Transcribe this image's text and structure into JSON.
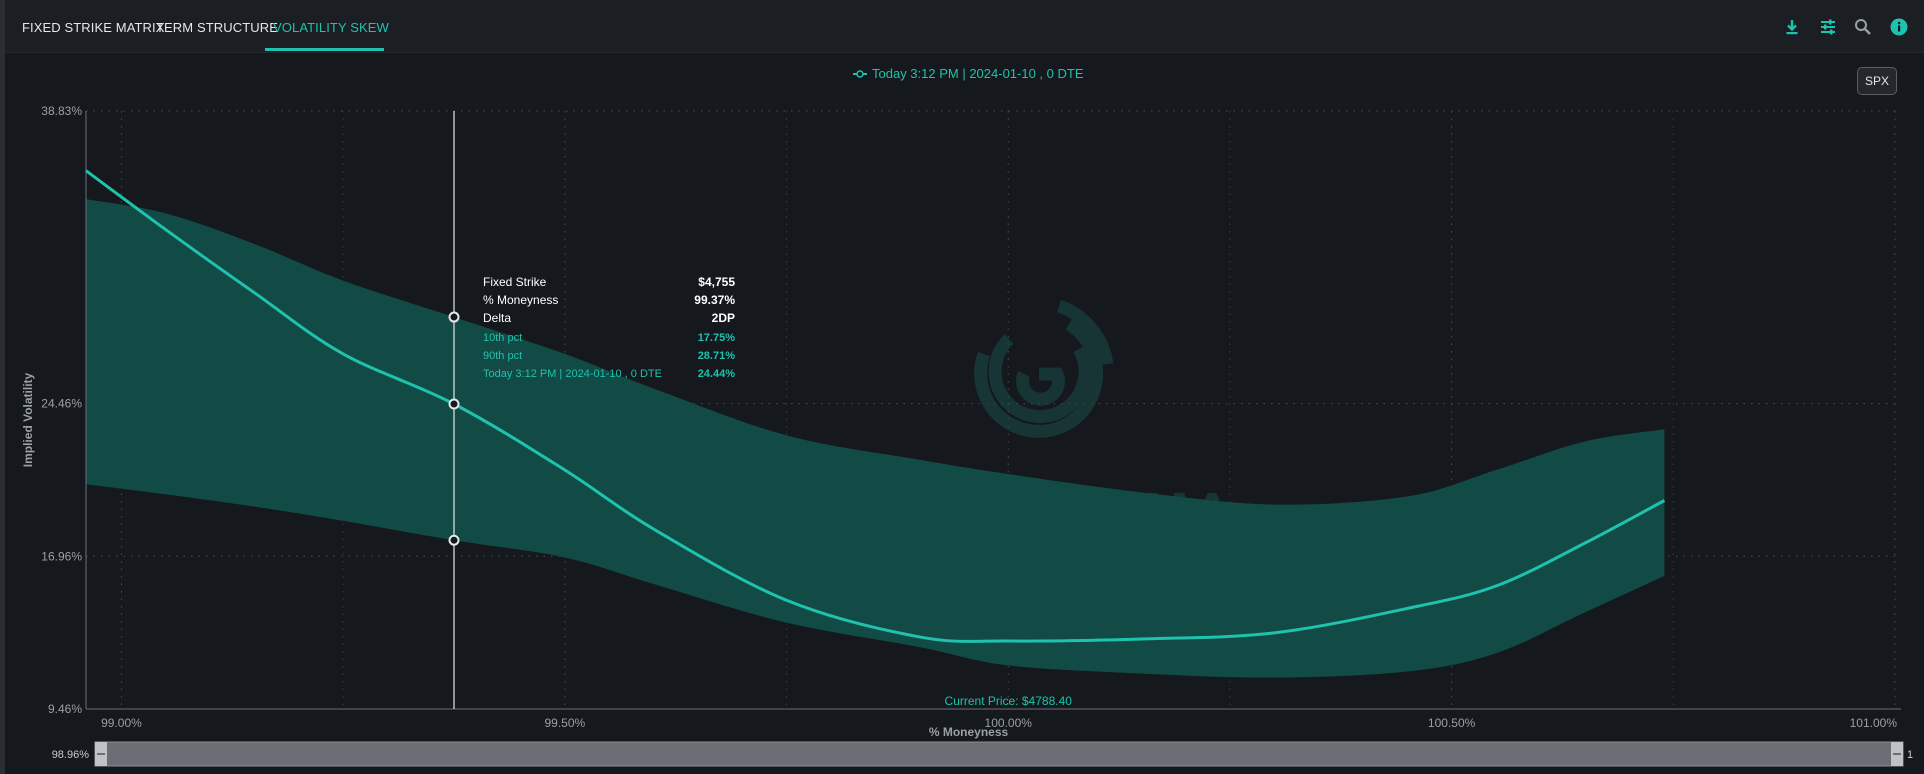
{
  "tabs": [
    {
      "label": "FIXED STRIKE MATRIX",
      "active": false
    },
    {
      "label": "TERM STRUCTURE",
      "active": false
    },
    {
      "label": "VOLATILITY SKEW",
      "active": true
    }
  ],
  "toolbar_icons": [
    "download-icon",
    "settings-sliders-icon",
    "search-icon",
    "info-icon"
  ],
  "symbol_button": "SPX",
  "watermark": "SPOTGAMMA",
  "colors": {
    "accent": "#1fc2ad",
    "band": "#124a45",
    "background": "#15181c"
  },
  "chart_data": {
    "type": "area",
    "legend": [
      "Today 3:12 PM | 2024-01-10 , 0 DTE"
    ],
    "legend_position": "top-center",
    "xlabel": "% Moneyness",
    "ylabel": "Implied Volatility",
    "xlim": [
      98.96,
      101.0
    ],
    "ylim": [
      9.46,
      38.83
    ],
    "x_ticks": [
      99.0,
      99.5,
      100.0,
      100.5,
      101.0
    ],
    "x_tick_labels": [
      "99.00%",
      "99.50%",
      "100.00%",
      "100.50%",
      "101.00%"
    ],
    "y_ticks": [
      9.46,
      16.96,
      24.46,
      38.83
    ],
    "y_tick_labels": [
      "9.46%",
      "16.96%",
      "24.46%",
      "38.83%"
    ],
    "grid": true,
    "x": [
      98.96,
      99.05,
      99.15,
      99.25,
      99.375,
      99.5,
      99.6,
      99.75,
      99.9,
      100.0,
      100.15,
      100.3,
      100.45,
      100.55,
      100.65,
      100.74
    ],
    "series": [
      {
        "name": "Today 3:12 PM | 2024-01-10 , 0 DTE",
        "values": [
          35.9,
          33.0,
          29.9,
          26.9,
          24.44,
          21.2,
          18.3,
          14.8,
          13.0,
          12.8,
          12.9,
          13.2,
          14.4,
          15.5,
          17.6,
          19.7
        ]
      },
      {
        "name": "10th pct",
        "values": [
          20.5,
          20.0,
          19.4,
          18.7,
          17.75,
          16.9,
          15.6,
          13.7,
          12.5,
          11.6,
          11.2,
          11.0,
          11.3,
          12.2,
          14.2,
          16.0
        ]
      },
      {
        "name": "90th pct",
        "values": [
          34.5,
          33.8,
          32.3,
          30.5,
          28.71,
          26.9,
          25.2,
          22.9,
          21.7,
          21.0,
          20.1,
          19.5,
          19.9,
          21.2,
          22.6,
          23.2
        ]
      }
    ],
    "current_price_label": "Current Price: $4788.40",
    "current_price_x": 100.0,
    "cursor_x": 99.375,
    "tooltip": {
      "rows": [
        {
          "label": "Fixed Strike",
          "value": "$4,755"
        },
        {
          "label": "% Moneyness",
          "value": "99.37%"
        },
        {
          "label": "Delta",
          "value": "2DP"
        }
      ],
      "series_rows": [
        {
          "label": "10th pct",
          "value": "17.75%"
        },
        {
          "label": "90th pct",
          "value": "28.71%"
        },
        {
          "label": "Today 3:12 PM | 2024-01-10 , 0 DTE",
          "value": "24.44%"
        }
      ]
    },
    "range_slider": {
      "left_label": "98.96%",
      "right_label": "1"
    }
  }
}
